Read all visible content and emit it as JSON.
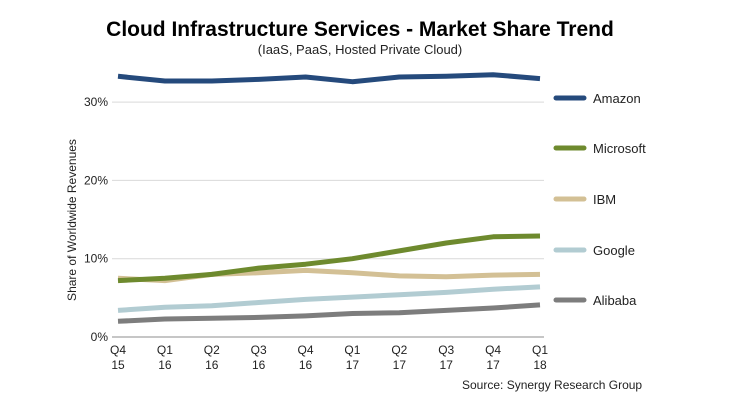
{
  "chart_data": {
    "type": "line",
    "title": "Cloud Infrastructure Services - Market Share Trend",
    "subtitle": "(IaaS, PaaS, Hosted Private Cloud)",
    "xlabel": "",
    "ylabel": "Share of Worldwide Revenues",
    "ylim": [
      0,
      35
    ],
    "yticks": [
      0,
      10,
      20,
      30
    ],
    "ytick_labels": [
      "0%",
      "10%",
      "20%",
      "30%"
    ],
    "grid": true,
    "legend_position": "right",
    "categories": [
      {
        "q": "Q4",
        "y": "15"
      },
      {
        "q": "Q1",
        "y": "16"
      },
      {
        "q": "Q2",
        "y": "16"
      },
      {
        "q": "Q3",
        "y": "16"
      },
      {
        "q": "Q4",
        "y": "16"
      },
      {
        "q": "Q1",
        "y": "17"
      },
      {
        "q": "Q2",
        "y": "17"
      },
      {
        "q": "Q3",
        "y": "17"
      },
      {
        "q": "Q4",
        "y": "17"
      },
      {
        "q": "Q1",
        "y": "18"
      }
    ],
    "series": [
      {
        "name": "Amazon",
        "color": "#254a7c",
        "values": [
          33.3,
          32.7,
          32.7,
          32.9,
          33.2,
          32.6,
          33.2,
          33.3,
          33.5,
          33.0
        ]
      },
      {
        "name": "Microsoft",
        "color": "#6e8a2e",
        "values": [
          7.2,
          7.5,
          8.0,
          8.8,
          9.3,
          10.0,
          11.0,
          12.0,
          12.8,
          12.9
        ]
      },
      {
        "name": "IBM",
        "color": "#d3c095",
        "values": [
          7.5,
          7.2,
          8.0,
          8.2,
          8.5,
          8.2,
          7.8,
          7.7,
          7.9,
          8.0
        ]
      },
      {
        "name": "Google",
        "color": "#b2ccd2",
        "values": [
          3.4,
          3.8,
          4.0,
          4.4,
          4.8,
          5.1,
          5.4,
          5.7,
          6.1,
          6.4
        ]
      },
      {
        "name": "Alibaba",
        "color": "#7d7d7d",
        "values": [
          2.0,
          2.3,
          2.4,
          2.5,
          2.7,
          3.0,
          3.1,
          3.4,
          3.7,
          4.1
        ]
      }
    ],
    "source": "Source: Synergy Research Group"
  }
}
